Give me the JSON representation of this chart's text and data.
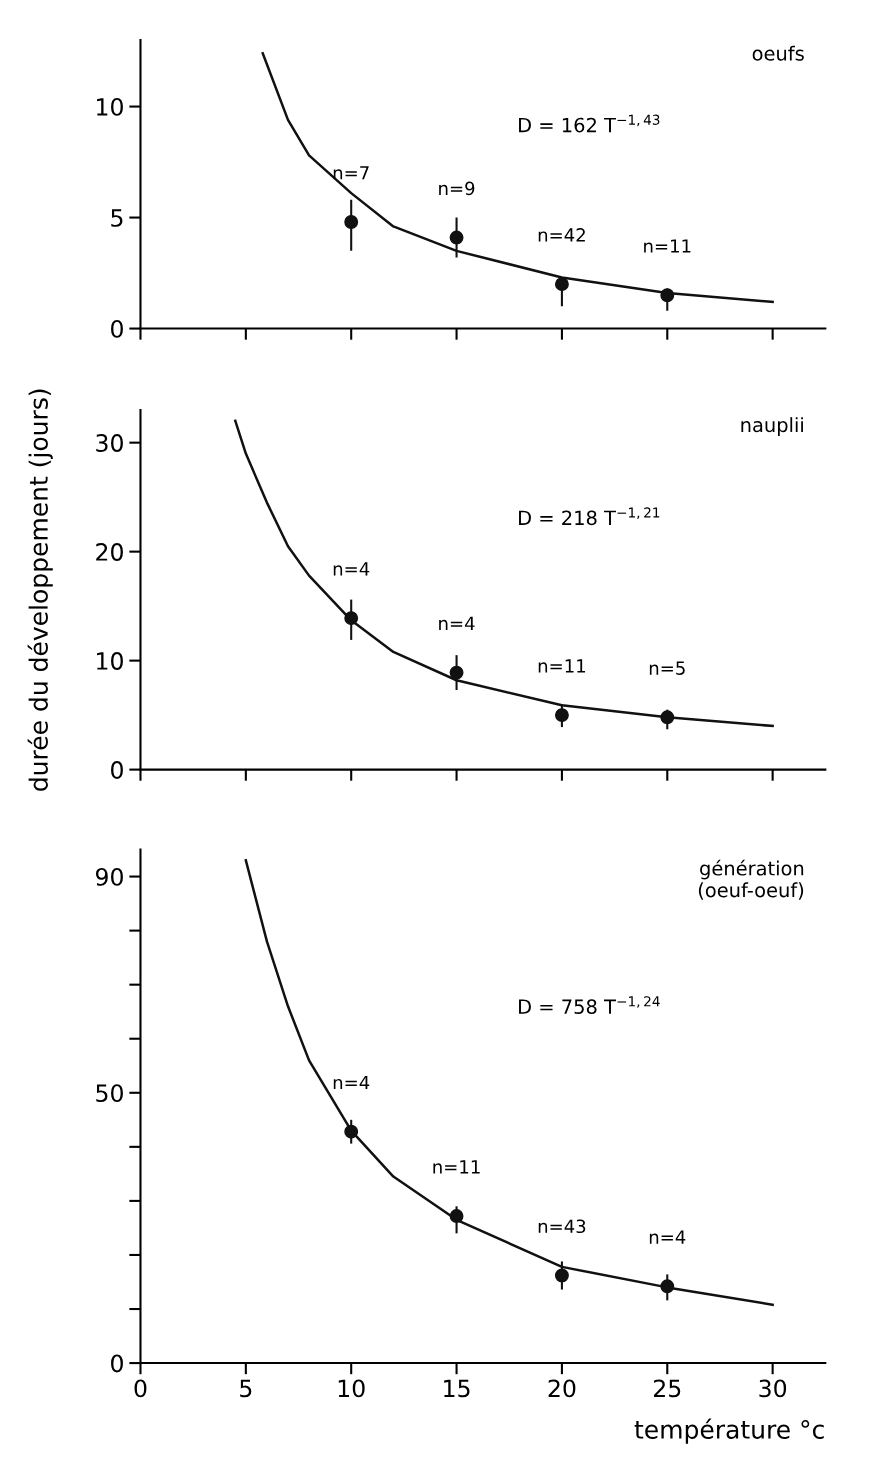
{
  "chart_data": [
    {
      "type": "scatter",
      "title": "oeufs",
      "x": [
        10,
        15,
        20,
        25
      ],
      "xlim": [
        0,
        32.5
      ],
      "xticks": [
        {
          "value": 0,
          "label": null
        },
        {
          "value": 5,
          "label": null
        },
        {
          "value": 10,
          "label": null
        },
        {
          "value": 15,
          "label": null
        },
        {
          "value": 20,
          "label": null
        },
        {
          "value": 25,
          "label": null
        },
        {
          "value": 30,
          "label": null
        }
      ],
      "ylim": [
        0,
        13
      ],
      "yticks": [
        0,
        5,
        10
      ],
      "tick_labels": "y",
      "grid": false,
      "legend": false,
      "marker": "circle",
      "series": [
        {
          "color": "#111111",
          "values": [
            4.8,
            4.1,
            2.0,
            1.5
          ],
          "errors": [
            [
              3.5,
              5.8
            ],
            [
              3.2,
              5.0
            ],
            [
              1.0,
              2.3
            ],
            [
              0.8,
              1.8
            ]
          ]
        },
        {
          "type": "line",
          "color": "#111111",
          "marker": "none",
          "x": [
            5.8,
            7,
            8,
            10,
            12,
            15,
            20,
            25,
            30
          ],
          "values": [
            12.4,
            9.4,
            7.8,
            6.1,
            4.6,
            3.5,
            2.3,
            1.6,
            1.2
          ]
        }
      ],
      "annotations": [
        {
          "text": "n=7",
          "x": 10,
          "y": 4.8
        },
        {
          "text": "n=9",
          "x": 15,
          "y": 4.1
        },
        {
          "text": "n=42",
          "x": 20,
          "y": 2.0
        },
        {
          "text": "n=11",
          "x": 25,
          "y": 1.5
        },
        "D = 162 T$^{−1,43}$"
      ]
    },
    {
      "type": "scatter",
      "title": "nauplii",
      "ylabel": "durée du développement (jours)",
      "x": [
        10,
        15,
        20,
        25
      ],
      "xlim": [
        0,
        32.5
      ],
      "xticks": [
        {
          "value": 0,
          "label": null
        },
        {
          "value": 5,
          "label": null
        },
        {
          "value": 10,
          "label": null
        },
        {
          "value": 15,
          "label": null
        },
        {
          "value": 20,
          "label": null
        },
        {
          "value": 25,
          "label": null
        },
        {
          "value": 30,
          "label": null
        }
      ],
      "ylim": [
        0,
        33
      ],
      "yticks": [
        0,
        10,
        20,
        30
      ],
      "tick_labels": "y",
      "grid": false,
      "legend": false,
      "marker": "circle",
      "series": [
        {
          "color": "#111111",
          "values": [
            13.9,
            8.9,
            5.0,
            4.8
          ],
          "errors": [
            [
              11.9,
              15.6
            ],
            [
              7.3,
              10.5
            ],
            [
              3.9,
              6.0
            ],
            [
              3.7,
              5.5
            ]
          ]
        },
        {
          "type": "line",
          "color": "#111111",
          "marker": "none",
          "x": [
            4.5,
            5,
            6,
            7,
            8,
            10,
            12,
            15,
            20,
            25,
            30
          ],
          "values": [
            32,
            29,
            24.5,
            20.5,
            17.8,
            13.7,
            10.8,
            8.2,
            5.9,
            4.8,
            4.0
          ]
        }
      ],
      "annotations": [
        {
          "text": "n=4",
          "x": 10,
          "y": 13.9
        },
        {
          "text": "n=4",
          "x": 15,
          "y": 8.9
        },
        {
          "text": "n=11",
          "x": 20,
          "y": 5.0
        },
        {
          "text": "n=5",
          "x": 25,
          "y": 4.8
        },
        "D = 218 T$^{−1,21}$"
      ]
    },
    {
      "type": "scatter",
      "title": "génération\n(oeuf-oeuf)",
      "xlabel": "température °c",
      "x": [
        10,
        15,
        20,
        25
      ],
      "xlim": [
        0,
        32.5
      ],
      "xticks": [
        0,
        5,
        10,
        15,
        20,
        25,
        30
      ],
      "ylim": [
        0,
        95
      ],
      "yticks": [
        0,
        {
          "value": 10,
          "label": null
        },
        {
          "value": 20,
          "label": null
        },
        {
          "value": 30,
          "label": null
        },
        {
          "value": 40,
          "label": null
        },
        50,
        {
          "value": 60,
          "label": null
        },
        {
          "value": 70,
          "label": null
        },
        {
          "value": 80,
          "label": null
        },
        90
      ],
      "grid": false,
      "legend": false,
      "marker": "circle",
      "series": [
        {
          "color": "#111111",
          "values": [
            42.8,
            27.2,
            16.2,
            14.2
          ],
          "errors": [
            [
              40.6,
              45
            ],
            [
              24,
              29
            ],
            [
              13.6,
              18.8
            ],
            [
              11.6,
              16.4
            ]
          ]
        },
        {
          "type": "line",
          "color": "#111111",
          "marker": "none",
          "x": [
            5,
            6,
            7,
            8,
            10,
            12,
            15,
            20,
            25,
            30
          ],
          "values": [
            93,
            78,
            66,
            56,
            43,
            34.5,
            26.5,
            17.8,
            14,
            10.8
          ]
        }
      ],
      "annotations": [
        {
          "text": "n=4",
          "x": 10,
          "y": 42.8
        },
        {
          "text": "n=11",
          "x": 15,
          "y": 27.2
        },
        {
          "text": "n=43",
          "x": 20,
          "y": 16.2
        },
        {
          "text": "n=4",
          "x": 25,
          "y": 14.2
        },
        "D = 758 T$^{−1,24}$"
      ]
    }
  ]
}
